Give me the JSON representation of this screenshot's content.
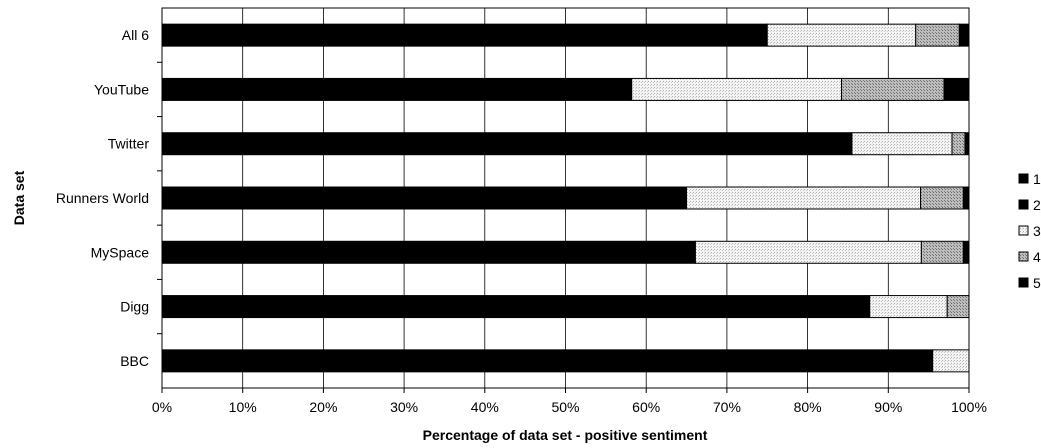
{
  "chart_data": {
    "type": "bar",
    "orientation": "horizontal",
    "stacked": true,
    "title": "",
    "xlabel": "Percentage of data set - positive sentiment",
    "ylabel": "Data set",
    "xlim": [
      0,
      100
    ],
    "x_ticks": [
      "0%",
      "10%",
      "20%",
      "30%",
      "40%",
      "50%",
      "60%",
      "70%",
      "80%",
      "90%",
      "100%"
    ],
    "grid": "vertical",
    "legend_position": "right",
    "categories": [
      "All 6",
      "YouTube",
      "Twitter",
      "Runners World",
      "MySpace",
      "Digg",
      "BBC"
    ],
    "series": [
      {
        "name": "1",
        "color": "#000000",
        "pattern": "solid",
        "values": [
          75.0,
          58.2,
          85.5,
          65.0,
          66.1,
          87.7,
          95.5
        ]
      },
      {
        "name": "2",
        "color": "#000000",
        "pattern": "solid",
        "values": [
          0.0,
          0.0,
          0.0,
          0.0,
          0.0,
          0.0,
          0.0
        ]
      },
      {
        "name": "3",
        "color": "#f0f0f0",
        "pattern": "light",
        "values": [
          18.4,
          26.0,
          12.4,
          29.0,
          28.0,
          9.6,
          4.5
        ]
      },
      {
        "name": "4",
        "color": "#b8b8b8",
        "pattern": "medium",
        "values": [
          5.4,
          12.7,
          1.6,
          5.3,
          5.2,
          2.7,
          0.0
        ]
      },
      {
        "name": "5",
        "color": "#000000",
        "pattern": "solid",
        "values": [
          1.2,
          3.1,
          0.5,
          0.7,
          0.7,
          0.0,
          0.0
        ]
      }
    ]
  }
}
